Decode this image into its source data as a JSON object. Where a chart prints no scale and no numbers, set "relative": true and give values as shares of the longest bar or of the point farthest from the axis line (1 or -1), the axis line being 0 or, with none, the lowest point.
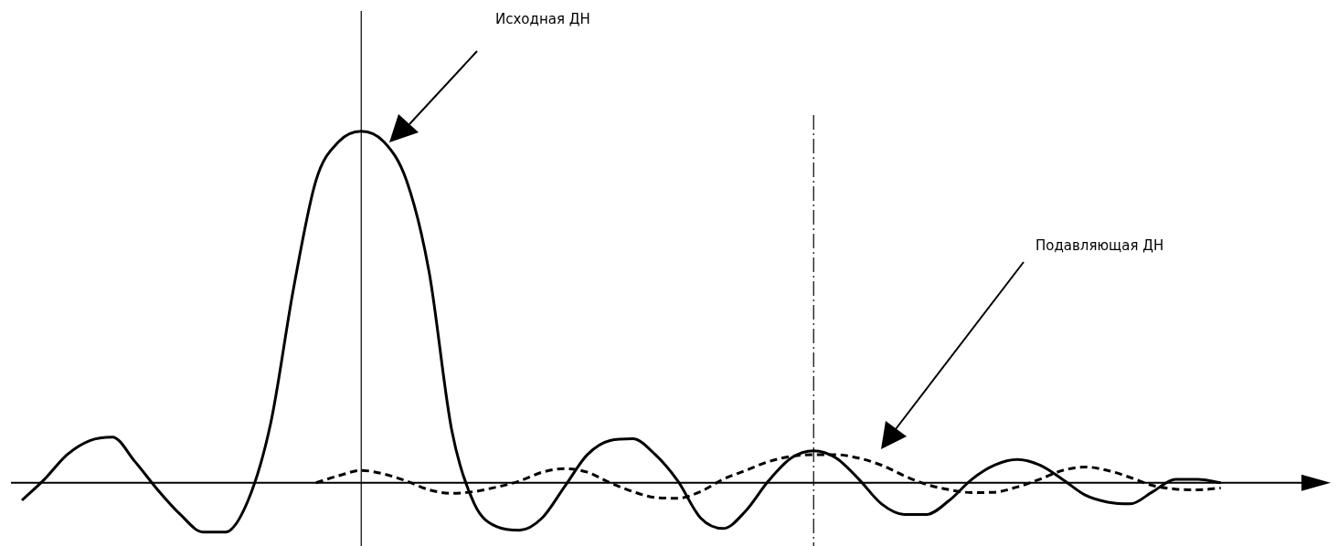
{
  "chart_data": {
    "type": "line",
    "relative": true,
    "legend": false,
    "marker": "none",
    "categories": [
      null,
      null,
      null,
      null,
      null,
      null,
      null,
      null,
      null,
      null,
      null,
      null,
      null,
      null,
      null,
      null,
      null,
      null,
      null,
      null,
      null,
      null,
      null,
      null,
      null,
      null,
      null,
      null,
      null,
      null,
      null,
      null,
      null,
      null,
      null,
      null,
      null,
      null,
      null,
      null,
      null,
      null,
      null,
      null,
      null,
      null,
      null,
      null,
      null,
      null,
      null,
      null,
      null,
      null,
      null,
      null,
      null
    ],
    "series": [
      {
        "color": "#000000",
        "line_style": "solid",
        "values": [
          -0.05,
          0.01,
          0.08,
          0.12,
          0.13,
          0.06,
          -0.02,
          -0.09,
          -0.14,
          -0.14,
          -0.05,
          0.17,
          0.55,
          0.86,
          0.97,
          1.0,
          0.97,
          0.86,
          0.6,
          0.15,
          -0.06,
          -0.125,
          -0.135,
          -0.1,
          -0.01,
          0.08,
          0.12,
          0.125,
          0.08,
          0.005,
          -0.1,
          -0.13,
          -0.08,
          0.005,
          0.07,
          0.091,
          0.07,
          0.01,
          -0.06,
          -0.09,
          -0.09,
          -0.05,
          0.01,
          0.05,
          0.066,
          0.05,
          0.01,
          -0.035,
          -0.055,
          -0.06,
          -0.025,
          0.01,
          0.01,
          0,
          null,
          null,
          null
        ]
      },
      {
        "color": "#000000",
        "line_style": "dashed",
        "values": [
          null,
          null,
          null,
          null,
          null,
          null,
          null,
          null,
          null,
          null,
          null,
          null,
          null,
          0,
          0.02,
          0.035,
          0.025,
          0.005,
          -0.02,
          -0.03,
          -0.025,
          -0.012,
          0.005,
          0.03,
          0.04,
          0.03,
          0,
          -0.025,
          -0.042,
          -0.044,
          -0.025,
          0.01,
          0.035,
          0.06,
          0.075,
          0.08,
          0.08,
          0.07,
          0.05,
          0.02,
          -0.005,
          -0.02,
          -0.028,
          -0.027,
          -0.012,
          0.01,
          0.035,
          0.045,
          0.035,
          0.015,
          -0.008,
          -0.018,
          -0.02,
          -0.015,
          null,
          null,
          null
        ]
      }
    ],
    "annotations": [
      "Исходная ДН",
      "Подавляющая ДН"
    ]
  }
}
